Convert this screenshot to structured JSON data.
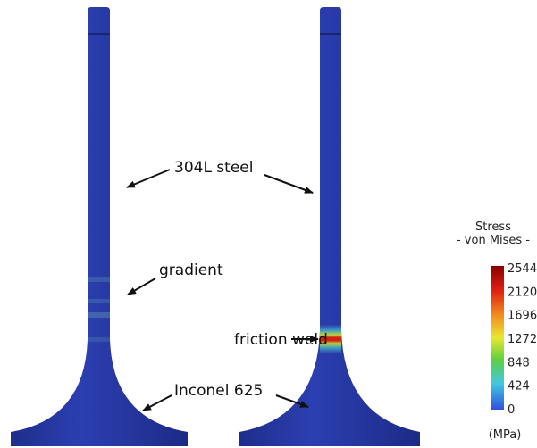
{
  "labels": {
    "steel": "304L steel",
    "gradient": "gradient",
    "weld": "friction weld",
    "inconel": "Inconel 625"
  },
  "legend": {
    "title": "Stress",
    "subtitle": "- von Mises -",
    "ticks": [
      2544,
      2120,
      1696,
      1272,
      848,
      424,
      0
    ],
    "unit": "(MPa)"
  }
}
